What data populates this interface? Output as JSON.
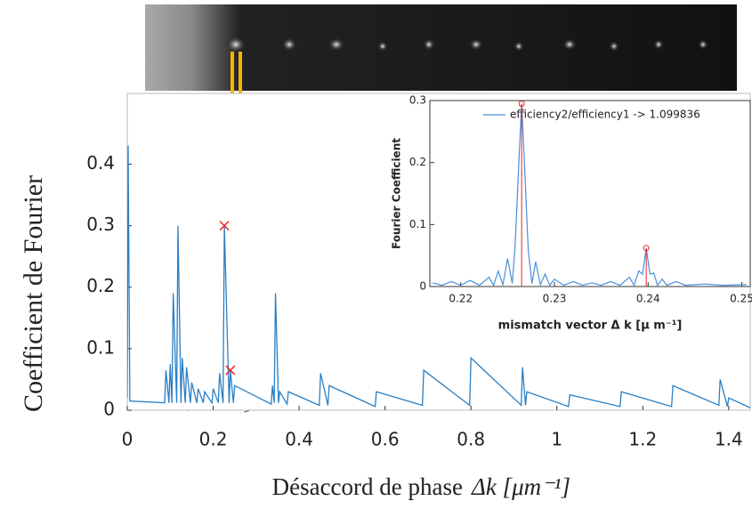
{
  "chart_data": [
    {
      "type": "line",
      "ylabel": "Coefficient de Fourier",
      "xlabel": "Désaccord de phase",
      "xlabel_unit": "Δk [μm⁻¹]",
      "xlim": [
        0,
        1.45
      ],
      "ylim": [
        0,
        0.515
      ],
      "xticks": [
        0,
        0.2,
        0.4,
        0.6,
        0.8,
        1,
        1.2,
        1.4
      ],
      "yticks": [
        0,
        0.1,
        0.2,
        0.3,
        0.4
      ],
      "x": [
        0,
        0.002,
        0.006,
        0.087,
        0.09,
        0.097,
        0.1,
        0.104,
        0.107,
        0.115,
        0.118,
        0.125,
        0.128,
        0.135,
        0.138,
        0.147,
        0.15,
        0.162,
        0.165,
        0.177,
        0.18,
        0.197,
        0.2,
        0.212,
        0.215,
        0.223,
        0.226,
        0.237,
        0.24,
        0.247,
        0.25,
        0.335,
        0.338,
        0.342,
        0.345,
        0.352,
        0.355,
        0.372,
        0.375,
        0.447,
        0.45,
        0.467,
        0.47,
        0.577,
        0.58,
        0.687,
        0.69,
        0.797,
        0.8,
        0.917,
        0.92,
        0.927,
        0.93,
        1.027,
        1.03,
        1.147,
        1.15,
        1.267,
        1.27,
        1.377,
        1.38,
        1.397,
        1.4,
        1.45
      ],
      "series": [
        {
          "color": "#2a7fc4",
          "values": [
            0.02,
            0.43,
            0.015,
            0.012,
            0.065,
            0.012,
            0.075,
            0.012,
            0.19,
            0.012,
            0.3,
            0.012,
            0.085,
            0.012,
            0.07,
            0.012,
            0.045,
            0.012,
            0.035,
            0.012,
            0.03,
            0.012,
            0.035,
            0.012,
            0.06,
            0.012,
            0.3,
            0.012,
            0.065,
            0.012,
            0.04,
            0.01,
            0.04,
            0.012,
            0.19,
            0.012,
            0.03,
            0.01,
            0.03,
            0.008,
            0.06,
            0.008,
            0.04,
            0.006,
            0.03,
            0.008,
            0.065,
            0.008,
            0.085,
            0.008,
            0.07,
            0.008,
            0.03,
            0.006,
            0.025,
            0.006,
            0.03,
            0.006,
            0.04,
            0.008,
            0.05,
            0.006,
            0.02,
            0.004
          ]
        }
      ],
      "markers": {
        "color": "#e8242a",
        "x": [
          0.226,
          0.24
        ],
        "values": [
          0.3,
          0.065
        ]
      }
    },
    {
      "type": "line",
      "ylabel": "Fourier Coefficient",
      "xlabel": "mismatch vector  Δ k [μ m⁻¹]",
      "xlim": [
        0.2167,
        0.2509
      ],
      "ylim": [
        0,
        0.3
      ],
      "xticks": [
        0.22,
        0.23,
        0.24,
        0.25
      ],
      "yticks": [
        0,
        0.1,
        0.2,
        0.3
      ],
      "x": [
        0.217,
        0.218,
        0.219,
        0.22,
        0.221,
        0.222,
        0.223,
        0.2235,
        0.224,
        0.2245,
        0.225,
        0.2255,
        0.2258,
        0.2262,
        0.2265,
        0.2268,
        0.2272,
        0.2276,
        0.228,
        0.2285,
        0.229,
        0.2295,
        0.23,
        0.231,
        0.232,
        0.233,
        0.234,
        0.235,
        0.236,
        0.237,
        0.238,
        0.2385,
        0.239,
        0.2394,
        0.2398,
        0.2402,
        0.2406,
        0.241,
        0.2415,
        0.242,
        0.243,
        0.244,
        0.246,
        0.248,
        0.2505
      ],
      "series": [
        {
          "name": "efficiency2/efficiency1 -> 1.099836",
          "color": "#4a90d9",
          "values": [
            0.006,
            0.002,
            0.008,
            0.002,
            0.01,
            0.002,
            0.015,
            0.002,
            0.025,
            0.003,
            0.045,
            0.005,
            0.065,
            0.2,
            0.295,
            0.2,
            0.06,
            0.005,
            0.04,
            0.003,
            0.02,
            0.002,
            0.012,
            0.002,
            0.008,
            0.002,
            0.006,
            0.002,
            0.008,
            0.002,
            0.015,
            0.002,
            0.025,
            0.02,
            0.062,
            0.02,
            0.022,
            0.002,
            0.012,
            0.002,
            0.008,
            0.002,
            0.004,
            0.002,
            0.003
          ]
        }
      ],
      "peaks": {
        "color": "#e8242a",
        "x": [
          0.2265,
          0.2398
        ],
        "values": [
          0.295,
          0.062
        ]
      },
      "legend": "upper right"
    }
  ]
}
